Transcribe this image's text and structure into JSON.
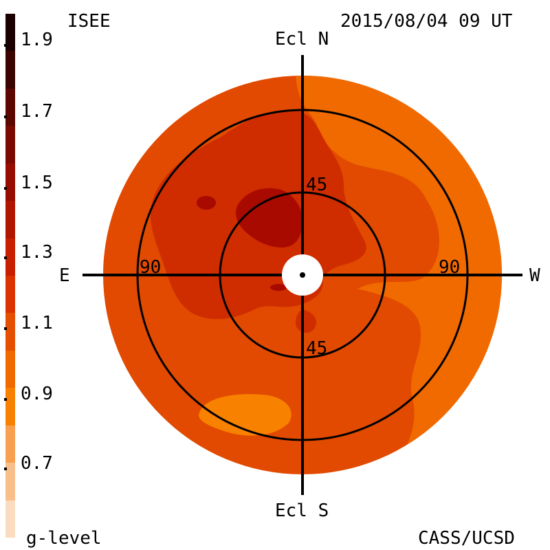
{
  "header": {
    "source": "ISEE",
    "timestamp": "2015/08/04 09 UT"
  },
  "footer": {
    "legend_title": "g-level",
    "credit": "CASS/UCSD"
  },
  "colorbar": {
    "ticks": [
      "1.9",
      "1.7",
      "1.5",
      "1.3",
      "1.1",
      "0.9",
      "0.7"
    ],
    "colors": [
      "#1a0000",
      "#3a0500",
      "#5c0800",
      "#7a0a00",
      "#960d00",
      "#b01500",
      "#c81f00",
      "#db3300",
      "#e54f00",
      "#f06a00",
      "#f88100",
      "#f9a050",
      "#f9bf8a",
      "#fbdcc0"
    ]
  },
  "map": {
    "axis_north": "Ecl N",
    "axis_south": "Ecl S",
    "axis_east": "E",
    "axis_west": "W",
    "ring_inner_label_top": "45",
    "ring_inner_label_bottom": "45",
    "ring_outer_label_left": "90",
    "ring_outer_label_right": "90",
    "colors": {
      "base": "#e14a00",
      "west": "#f06a00",
      "mid": "#cf2c00",
      "dark": "#a80a00",
      "blob": "#f88100"
    }
  }
}
